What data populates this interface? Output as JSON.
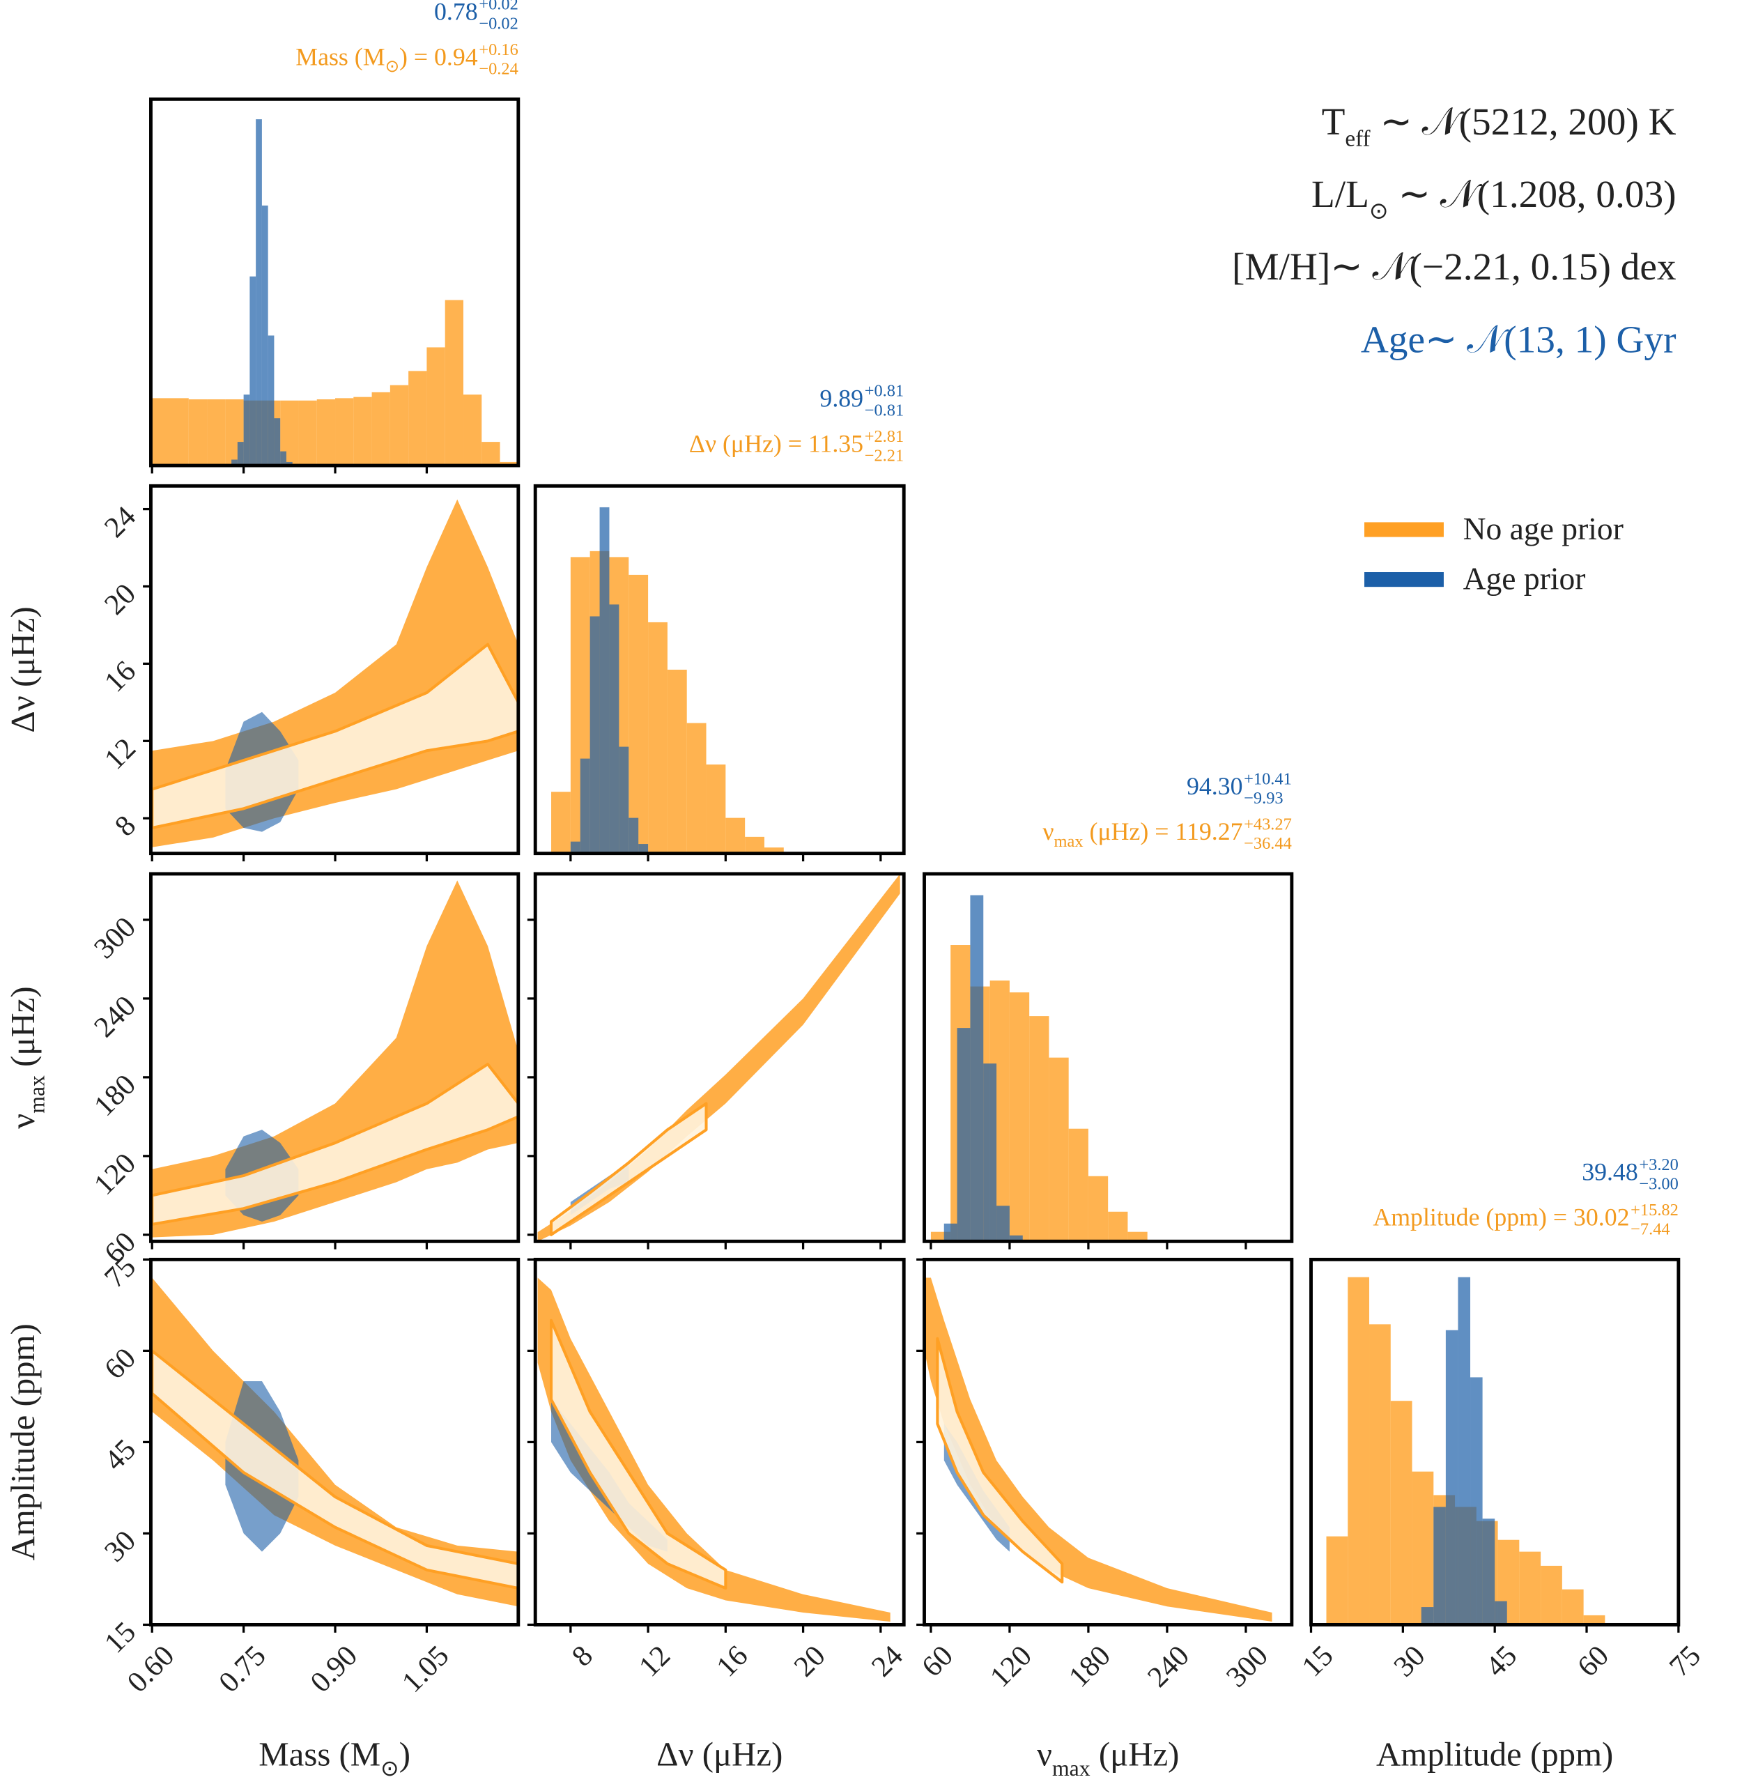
{
  "chart_data": {
    "type": "corner",
    "variables": [
      {
        "label": {
          "text": "Mass (M",
          "sub": "⊙",
          "rest": ")"
        },
        "lim": [
          0.598,
          1.2
        ],
        "ticks": [
          {
            "value": 0.6,
            "label": "0.60"
          },
          {
            "value": 0.75,
            "label": "0.75"
          },
          {
            "value": 0.9,
            "label": "0.90"
          },
          {
            "value": 1.05,
            "label": "1.05"
          }
        ]
      },
      {
        "label": {
          "text": "Δν (μHz)"
        },
        "lim": [
          6.18,
          25.2
        ],
        "ticks": [
          8,
          12,
          16,
          20,
          24
        ]
      },
      {
        "label": {
          "text": "ν",
          "sub": "max",
          "rest": " (μHz)"
        },
        "lim": [
          55,
          335
        ],
        "ticks": [
          60,
          120,
          180,
          240,
          300
        ]
      },
      {
        "label": {
          "text": "Amplitude (ppm)"
        },
        "lim": [
          15,
          75
        ],
        "ticks": [
          15,
          30,
          45,
          60,
          75
        ]
      }
    ],
    "diagonal": [
      {
        "type": "histogram",
        "ylim": [
          0,
          310
        ],
        "stats": [
          {
            "color": "#1c5fa8",
            "value": "0.78",
            "plus": "+0.02",
            "minus": "−0.02"
          },
          {
            "color": "#f39a1e",
            "prefix": {
              "text": "Mass (M",
              "sub": "⊙",
              "rest": ") = "
            },
            "value": "0.94",
            "plus": "+0.16",
            "minus": "−0.24"
          }
        ],
        "series": [
          {
            "color": "#ffa024",
            "alpha": 0.8,
            "bins": [
              0.6,
              0.63,
              0.66,
              0.69,
              0.72,
              0.75,
              0.78,
              0.81,
              0.84,
              0.87,
              0.9,
              0.93,
              0.96,
              0.99,
              1.02,
              1.05,
              1.08,
              1.11,
              1.14,
              1.17,
              1.2
            ],
            "values": [
              57,
              57,
              56,
              56,
              56,
              55,
              55,
              55,
              55,
              56,
              57,
              58,
              62,
              68,
              80,
              100,
              140,
              60,
              20,
              3
            ]
          },
          {
            "color": "#1c5fa8",
            "alpha": 0.7,
            "bins": [
              0.73,
              0.74,
              0.75,
              0.76,
              0.77,
              0.78,
              0.79,
              0.8,
              0.81,
              0.82,
              0.83
            ],
            "values": [
              5,
              20,
              60,
              160,
              293,
              220,
              110,
              40,
              12,
              3
            ]
          }
        ]
      },
      {
        "type": "histogram",
        "ylim": [
          0,
          310
        ],
        "stats": [
          {
            "color": "#1c5fa8",
            "value": "9.89",
            "plus": "+0.81",
            "minus": "−0.81"
          },
          {
            "color": "#f39a1e",
            "prefix": {
              "text": "Δν (μHz) = "
            },
            "value": "11.35",
            "plus": "+2.81",
            "minus": "−2.21"
          }
        ],
        "series": [
          {
            "color": "#ffa024",
            "alpha": 0.8,
            "bins": [
              7,
              8,
              9,
              10,
              11,
              12,
              13,
              14,
              15,
              16,
              17,
              18,
              19
            ],
            "values": [
              52,
              250,
              255,
              250,
              235,
              195,
              155,
              110,
              75,
              30,
              14,
              5
            ]
          },
          {
            "color": "#1c5fa8",
            "alpha": 0.7,
            "bins": [
              8,
              8.5,
              9,
              9.5,
              10,
              10.5,
              11,
              11.5,
              12
            ],
            "values": [
              10,
              80,
              200,
              292,
              210,
              90,
              30,
              8
            ]
          }
        ]
      },
      {
        "type": "histogram",
        "ylim": [
          0,
          310
        ],
        "stats": [
          {
            "color": "#1c5fa8",
            "value": "94.30",
            "plus": "+10.41",
            "minus": "−9.93"
          },
          {
            "color": "#f39a1e",
            "prefix": {
              "text": "ν",
              "sub": "max",
              "rest": " (μHz) = "
            },
            "value": "119.27",
            "plus": "+43.27",
            "minus": "−36.44"
          }
        ],
        "series": [
          {
            "color": "#ffa024",
            "alpha": 0.8,
            "bins": [
              60,
              75,
              90,
              105,
              120,
              135,
              150,
              165,
              180,
              195,
              210,
              225
            ],
            "values": [
              8,
              250,
              215,
              220,
              210,
              190,
              155,
              95,
              55,
              25,
              8
            ]
          },
          {
            "color": "#1c5fa8",
            "alpha": 0.7,
            "bins": [
              70,
              80,
              90,
              100,
              110,
              120,
              130
            ],
            "values": [
              15,
              180,
              292,
              150,
              30,
              5
            ]
          }
        ]
      },
      {
        "type": "histogram",
        "ylim": [
          0,
          310
        ],
        "stats": [
          {
            "color": "#1c5fa8",
            "value": "39.48",
            "plus": "+3.20",
            "minus": "−3.00"
          },
          {
            "color": "#f39a1e",
            "prefix": {
              "text": "Amplitude (ppm) = "
            },
            "value": "30.02",
            "plus": "+15.82",
            "minus": "−7.44"
          }
        ],
        "series": [
          {
            "color": "#ffa024",
            "alpha": 0.8,
            "bins": [
              17.5,
              21,
              24.5,
              28,
              31.5,
              35,
              38.5,
              42,
              45.5,
              49,
              52.5,
              56,
              59.5,
              63
            ],
            "values": [
              75,
              295,
              255,
              190,
              130,
              110,
              100,
              88,
              72,
              62,
              50,
              30,
              8
            ]
          },
          {
            "color": "#1c5fa8",
            "alpha": 0.7,
            "bins": [
              33,
              35,
              37,
              39,
              41,
              43,
              45,
              47
            ],
            "values": [
              15,
              100,
              250,
              295,
              210,
              90,
              20
            ]
          }
        ]
      }
    ],
    "pairs": [
      {
        "type": "band",
        "series": [
          {
            "color": "#ffa024",
            "alpha": 0.85,
            "x": [
              0.6,
              0.7,
              0.8,
              0.9,
              1.0,
              1.05,
              1.1,
              1.15,
              1.2
            ],
            "lower": [
              6.5,
              7,
              8,
              8.8,
              9.5,
              10,
              10.5,
              11,
              11.5
            ],
            "upper": [
              11.5,
              12,
              13,
              14.5,
              17,
              21,
              24.5,
              21,
              17
            ]
          },
          {
            "color": "#1c5fa8",
            "alpha": 0.6,
            "x": [
              0.72,
              0.75,
              0.78,
              0.81,
              0.84
            ],
            "lower": [
              8.5,
              7.5,
              7.3,
              7.8,
              9.5
            ],
            "upper": [
              10.5,
              13,
              13.5,
              12.5,
              11
            ]
          },
          {
            "color": "#fff3dd",
            "edgecolor": "#ffa024",
            "alpha": 0.9,
            "x": [
              0.6,
              0.75,
              0.9,
              1.05,
              1.15,
              1.2
            ],
            "lower": [
              7.5,
              8.5,
              10,
              11.5,
              12,
              12.5
            ],
            "upper": [
              9.5,
              11,
              12.5,
              14.5,
              17,
              14
            ]
          }
        ]
      },
      {
        "type": "band",
        "series": [
          {
            "color": "#ffa024",
            "alpha": 0.85,
            "x": [
              0.6,
              0.7,
              0.8,
              0.9,
              1.0,
              1.05,
              1.1,
              1.15,
              1.2
            ],
            "lower": [
              58,
              60,
              70,
              85,
              100,
              110,
              115,
              125,
              130
            ],
            "upper": [
              110,
              120,
              135,
              160,
              210,
              280,
              330,
              280,
              200
            ]
          },
          {
            "color": "#1c5fa8",
            "alpha": 0.6,
            "x": [
              0.72,
              0.75,
              0.78,
              0.81,
              0.84
            ],
            "lower": [
              90,
              75,
              70,
              75,
              90
            ],
            "upper": [
              110,
              135,
              140,
              130,
              110
            ]
          },
          {
            "color": "#fff3dd",
            "edgecolor": "#ffa024",
            "alpha": 0.9,
            "x": [
              0.6,
              0.75,
              0.9,
              1.05,
              1.15,
              1.2
            ],
            "lower": [
              68,
              80,
              100,
              125,
              140,
              150
            ],
            "upper": [
              90,
              105,
              130,
              160,
              190,
              160
            ]
          }
        ]
      },
      {
        "type": "band",
        "series": [
          {
            "color": "#ffa024",
            "alpha": 0.85,
            "x": [
              6.3,
              8,
              10,
              12,
              14,
              16,
              20,
              25
            ],
            "lower": [
              55,
              67,
              85,
              108,
              135,
              160,
              220,
              320
            ],
            "upper": [
              62,
              78,
              100,
              125,
              155,
              182,
              240,
              335
            ]
          },
          {
            "color": "#1c5fa8",
            "alpha": 0.6,
            "x": [
              8,
              9,
              10,
              11
            ],
            "lower": [
              75,
              85,
              95,
              100
            ],
            "upper": [
              85,
              95,
              105,
              115
            ]
          },
          {
            "color": "#fff3dd",
            "edgecolor": "#ffa024",
            "alpha": 0.9,
            "x": [
              7,
              9,
              11,
              13,
              15
            ],
            "lower": [
              60,
              80,
              100,
              120,
              140
            ],
            "upper": [
              70,
              92,
              115,
              140,
              160
            ]
          }
        ]
      },
      {
        "type": "band",
        "series": [
          {
            "color": "#ffa024",
            "alpha": 0.85,
            "x": [
              0.6,
              0.7,
              0.8,
              0.9,
              1.0,
              1.1,
              1.2
            ],
            "lower": [
              50,
              42,
              33,
              28,
              24,
              20,
              18
            ],
            "upper": [
              72,
              60,
              50,
              38,
              31,
              28,
              27
            ]
          },
          {
            "color": "#1c5fa8",
            "alpha": 0.6,
            "x": [
              0.72,
              0.75,
              0.78,
              0.81,
              0.84
            ],
            "lower": [
              38,
              30,
              27,
              30,
              36
            ],
            "upper": [
              45,
              55,
              55,
              50,
              42
            ]
          },
          {
            "color": "#fff3dd",
            "edgecolor": "#ffa024",
            "alpha": 0.9,
            "x": [
              0.6,
              0.75,
              0.9,
              1.05,
              1.2
            ],
            "lower": [
              53,
              40,
              31,
              24,
              21
            ],
            "upper": [
              60,
              48,
              36,
              28,
              25
            ]
          }
        ]
      },
      {
        "type": "band",
        "series": [
          {
            "color": "#ffa024",
            "alpha": 0.85,
            "x": [
              6.3,
              7,
              8,
              10,
              12,
              14,
              16,
              20,
              24.5
            ],
            "lower": [
              58,
              50,
              42,
              32,
              25,
              21,
              19,
              17,
              15.5
            ],
            "upper": [
              72,
              70,
              62,
              50,
              38,
              30,
              24,
              20,
              17
            ]
          },
          {
            "color": "#1c5fa8",
            "alpha": 0.6,
            "x": [
              7,
              8,
              9,
              10,
              11,
              12,
              13
            ],
            "lower": [
              45,
              40,
              37,
              34,
              31,
              28,
              27
            ],
            "upper": [
              52,
              48,
              44,
              40,
              35,
              32,
              29
            ]
          },
          {
            "color": "#fff3dd",
            "edgecolor": "#ffa024",
            "alpha": 0.9,
            "x": [
              7,
              9,
              11,
              13,
              16
            ],
            "lower": [
              52,
              40,
              30,
              25,
              21
            ],
            "upper": [
              65,
              50,
              40,
              30,
              24
            ]
          }
        ]
      },
      {
        "type": "band",
        "series": [
          {
            "color": "#ffa024",
            "alpha": 0.85,
            "x": [
              55,
              60,
              70,
              90,
              110,
              130,
              150,
              180,
              240,
              320
            ],
            "lower": [
              60,
              55,
              48,
              38,
              31,
              27,
              24,
              21,
              18,
              15.5
            ],
            "upper": [
              72,
              72,
              65,
              52,
              42,
              36,
              31,
              26,
              21,
              17
            ]
          },
          {
            "color": "#1c5fa8",
            "alpha": 0.6,
            "x": [
              70,
              80,
              90,
              100,
              110,
              120
            ],
            "lower": [
              42,
              38,
              35,
              32,
              29,
              27
            ],
            "upper": [
              48,
              45,
              41,
              37,
              34,
              31
            ]
          },
          {
            "color": "#fff3dd",
            "edgecolor": "#ffa024",
            "alpha": 0.9,
            "x": [
              65,
              80,
              100,
              130,
              160
            ],
            "lower": [
              48,
              40,
              33,
              27,
              22
            ],
            "upper": [
              62,
              50,
              40,
              32,
              25
            ]
          }
        ]
      }
    ],
    "legend": {
      "loc": "right",
      "entries": [
        {
          "name": "No age prior",
          "color": "#ffa024"
        },
        {
          "name": "Age prior",
          "color": "#1c5fa8"
        }
      ]
    },
    "annotations": [
      {
        "text": "T",
        "sub": "eff",
        "rest": " ∼ 𝒩(5212, 200) K",
        "color": "#222222"
      },
      {
        "text": "L/L",
        "sub": "⊙",
        "rest": " ∼ 𝒩(1.208, 0.03)",
        "color": "#222222"
      },
      {
        "text": "[M/H]∼ 𝒩(−2.21, 0.15) dex",
        "color": "#222222"
      },
      {
        "text": "Age∼ 𝒩(13, 1) Gyr",
        "color": "#1c5fa8"
      }
    ]
  }
}
